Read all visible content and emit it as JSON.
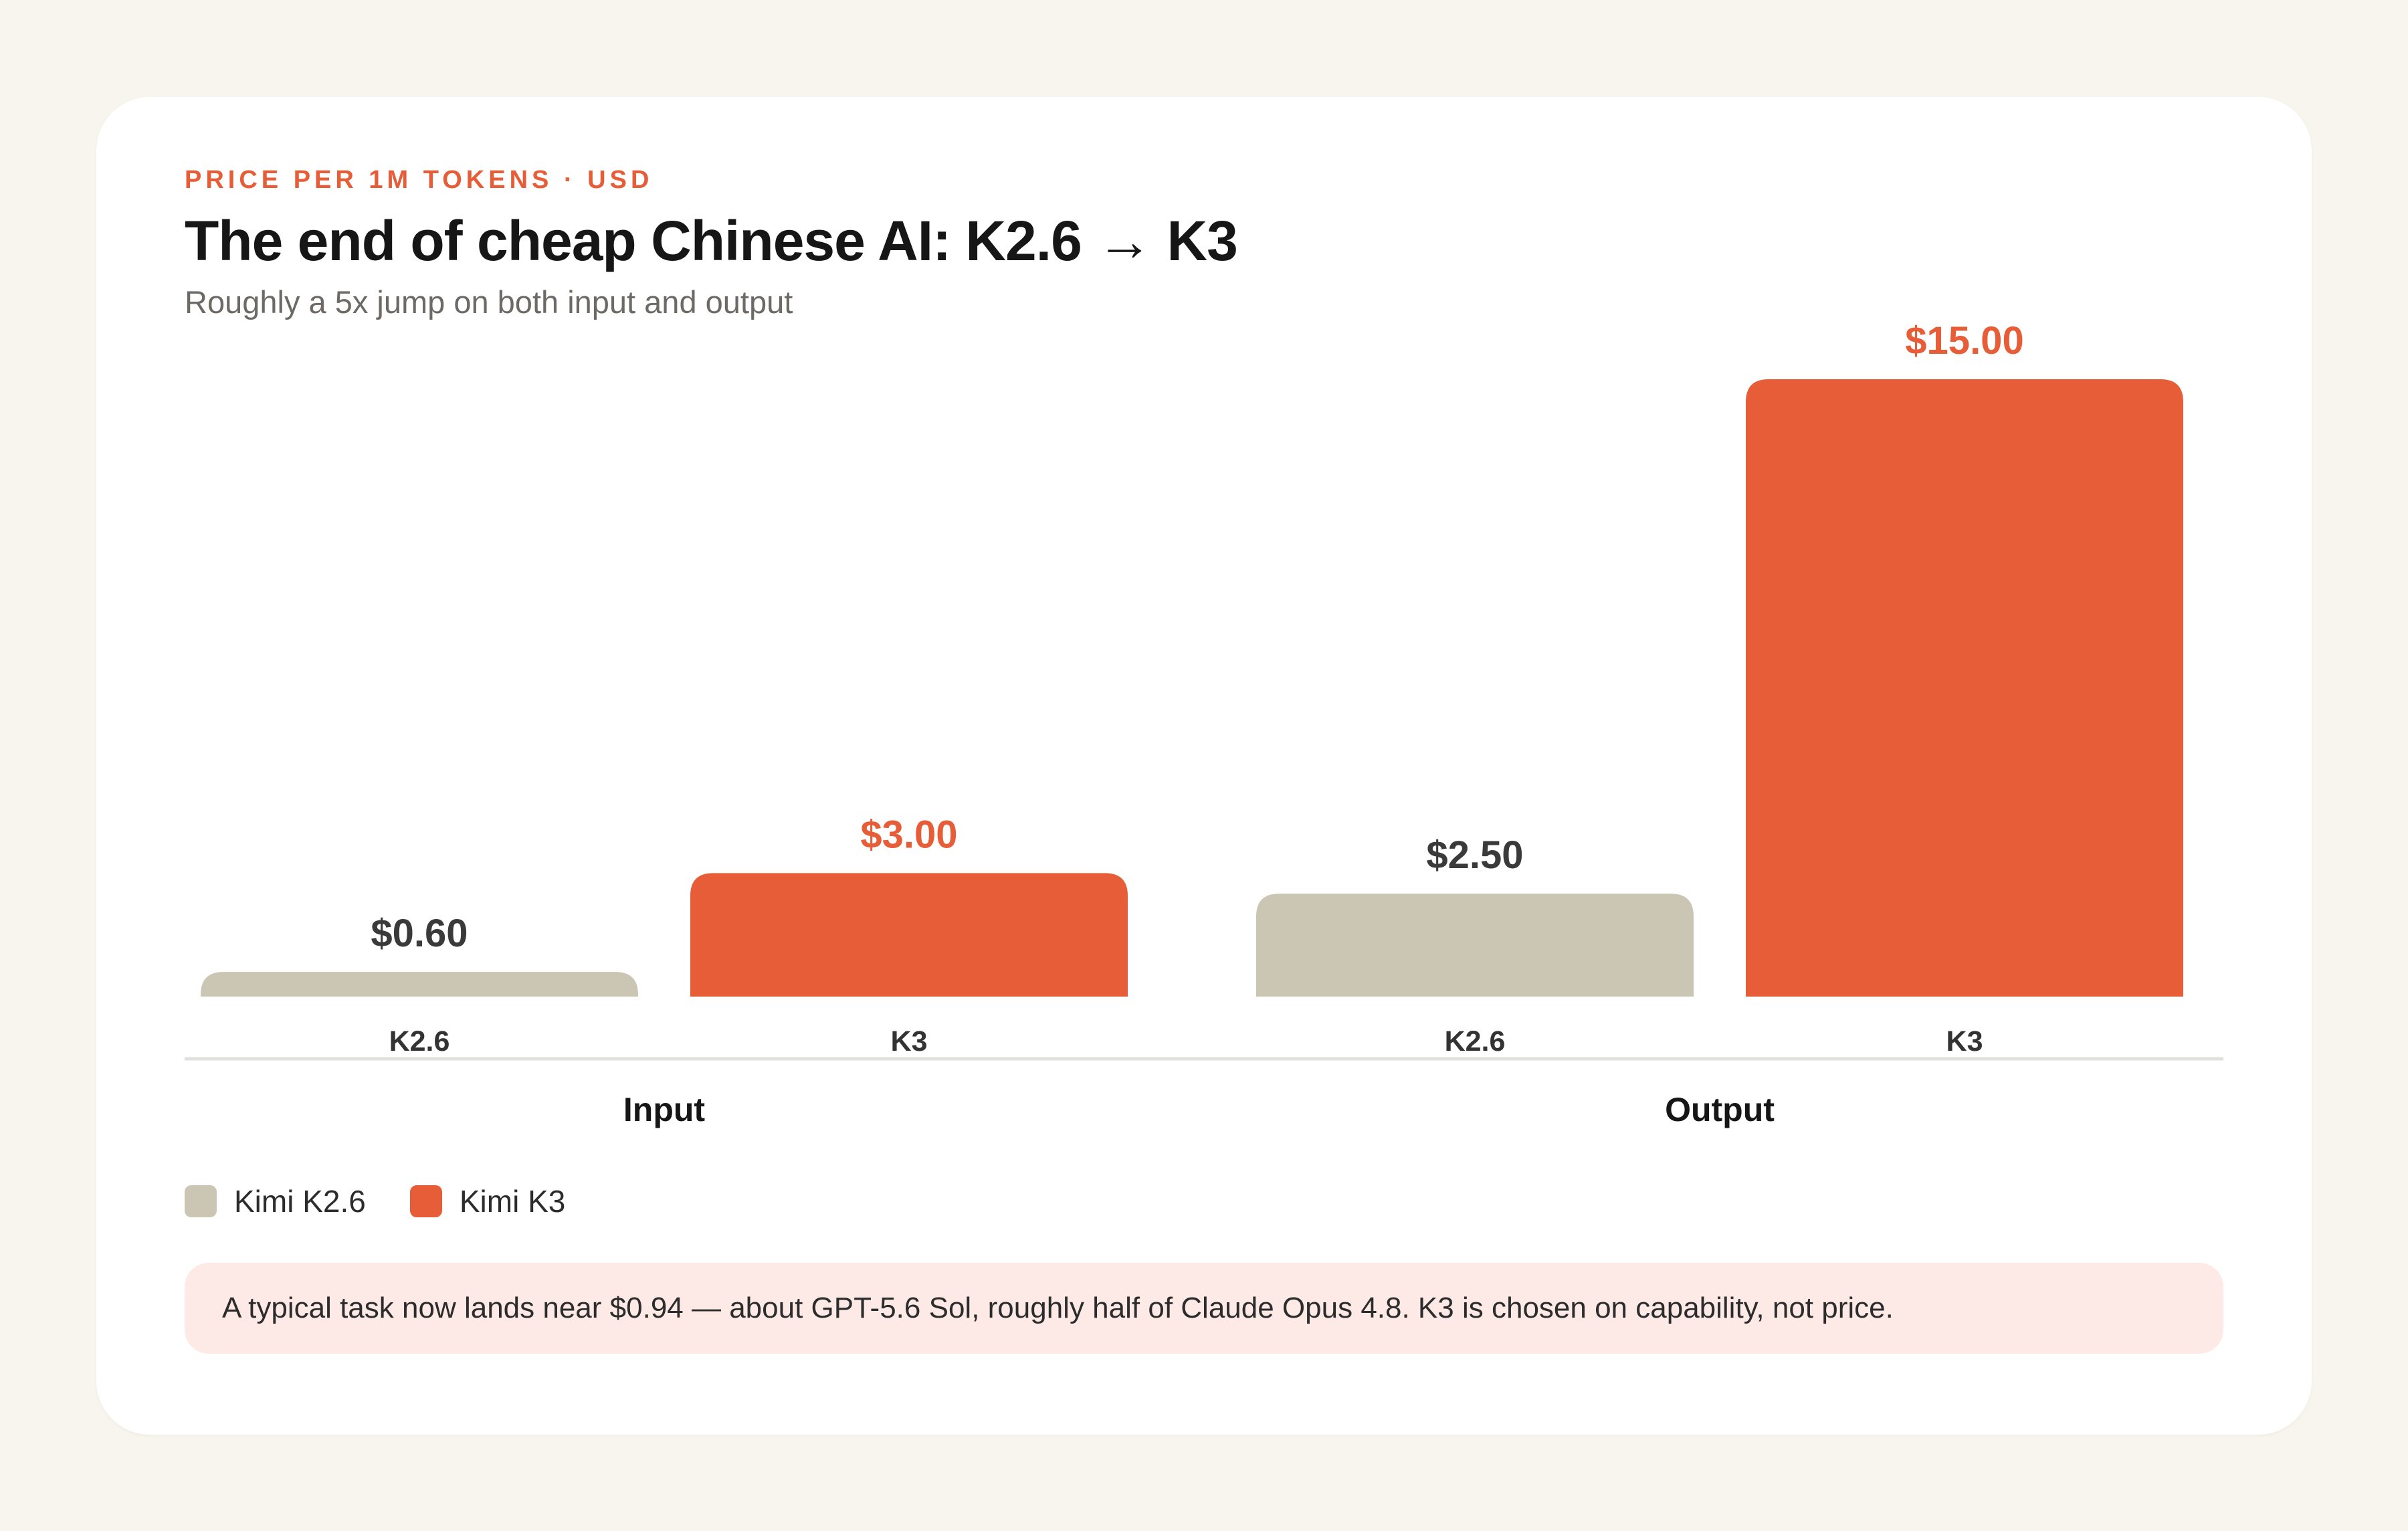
{
  "header": {
    "kicker": "PRICE PER 1M TOKENS · USD",
    "title": "The end of cheap Chinese AI: K2.6 → K3",
    "subtitle": "Roughly a 5x jump on both input and output"
  },
  "chart_data": {
    "type": "bar",
    "categories": [
      "Input",
      "Output"
    ],
    "series": [
      {
        "name": "Kimi K2.6",
        "tick": "K2.6",
        "values": [
          0.6,
          2.5
        ],
        "labels": [
          "$0.60",
          "$2.50"
        ],
        "color": "#cbc5b3",
        "label_color": "#3a3a3a"
      },
      {
        "name": "Kimi K3",
        "tick": "K3",
        "values": [
          3.0,
          15.0
        ],
        "labels": [
          "$3.00",
          "$15.00"
        ],
        "color": "#e65d37",
        "label_color": "#e65d37"
      }
    ],
    "ylim": [
      0,
      15
    ],
    "grid": false,
    "legend_position": "bottom-left"
  },
  "legend": {
    "items": [
      {
        "label": "Kimi K2.6",
        "color": "#cbc5b3"
      },
      {
        "label": "Kimi K3",
        "color": "#e65d37"
      }
    ]
  },
  "note": {
    "text": "A typical task now lands near $0.94 — about GPT-5.6 Sol, roughly half of Claude Opus 4.8. K3 is chosen on capability, not price."
  }
}
